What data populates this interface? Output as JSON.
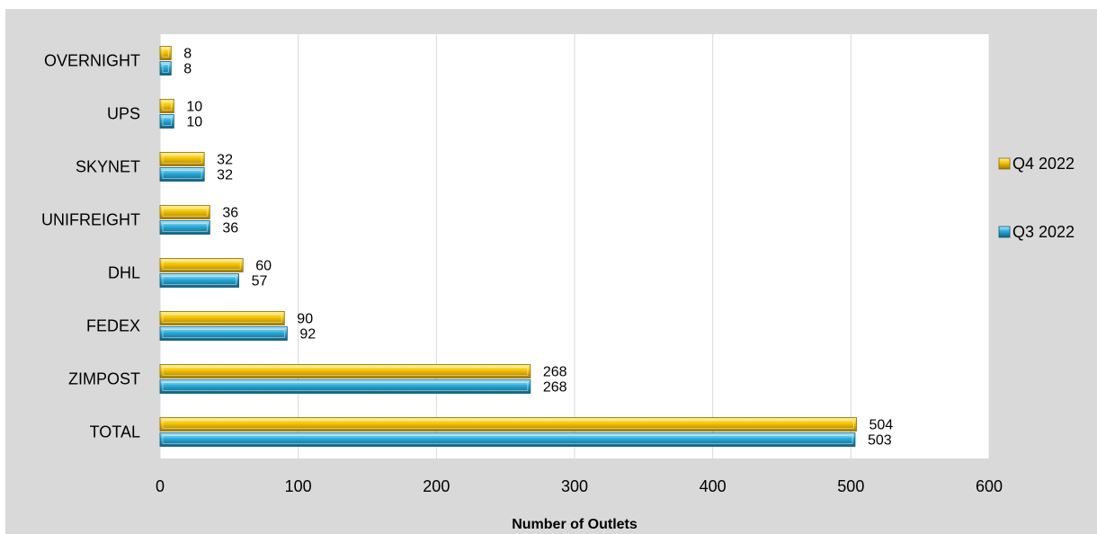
{
  "chart_data": {
    "type": "bar",
    "orientation": "horizontal",
    "categories": [
      "OVERNIGHT",
      "UPS",
      "SKYNET",
      "UNIFREIGHT",
      "DHL",
      "FEDEX",
      "ZIMPOST",
      "TOTAL"
    ],
    "series": [
      {
        "name": "Q4 2022",
        "values": [
          8,
          10,
          32,
          36,
          60,
          90,
          268,
          504
        ],
        "color": "#f2c200"
      },
      {
        "name": "Q3 2022",
        "values": [
          8,
          10,
          32,
          36,
          57,
          92,
          268,
          503
        ],
        "color": "#29a8d6"
      }
    ],
    "title": "",
    "xlabel": "Number of Outlets",
    "ylabel": "",
    "xlim": [
      0,
      600
    ],
    "xticks": [
      0,
      100,
      200,
      300,
      400,
      500,
      600
    ],
    "xtick_labels": [
      "0",
      "100",
      "200",
      "300",
      "400",
      "500",
      "600"
    ],
    "grid": "vertical",
    "legend_position": "right"
  }
}
